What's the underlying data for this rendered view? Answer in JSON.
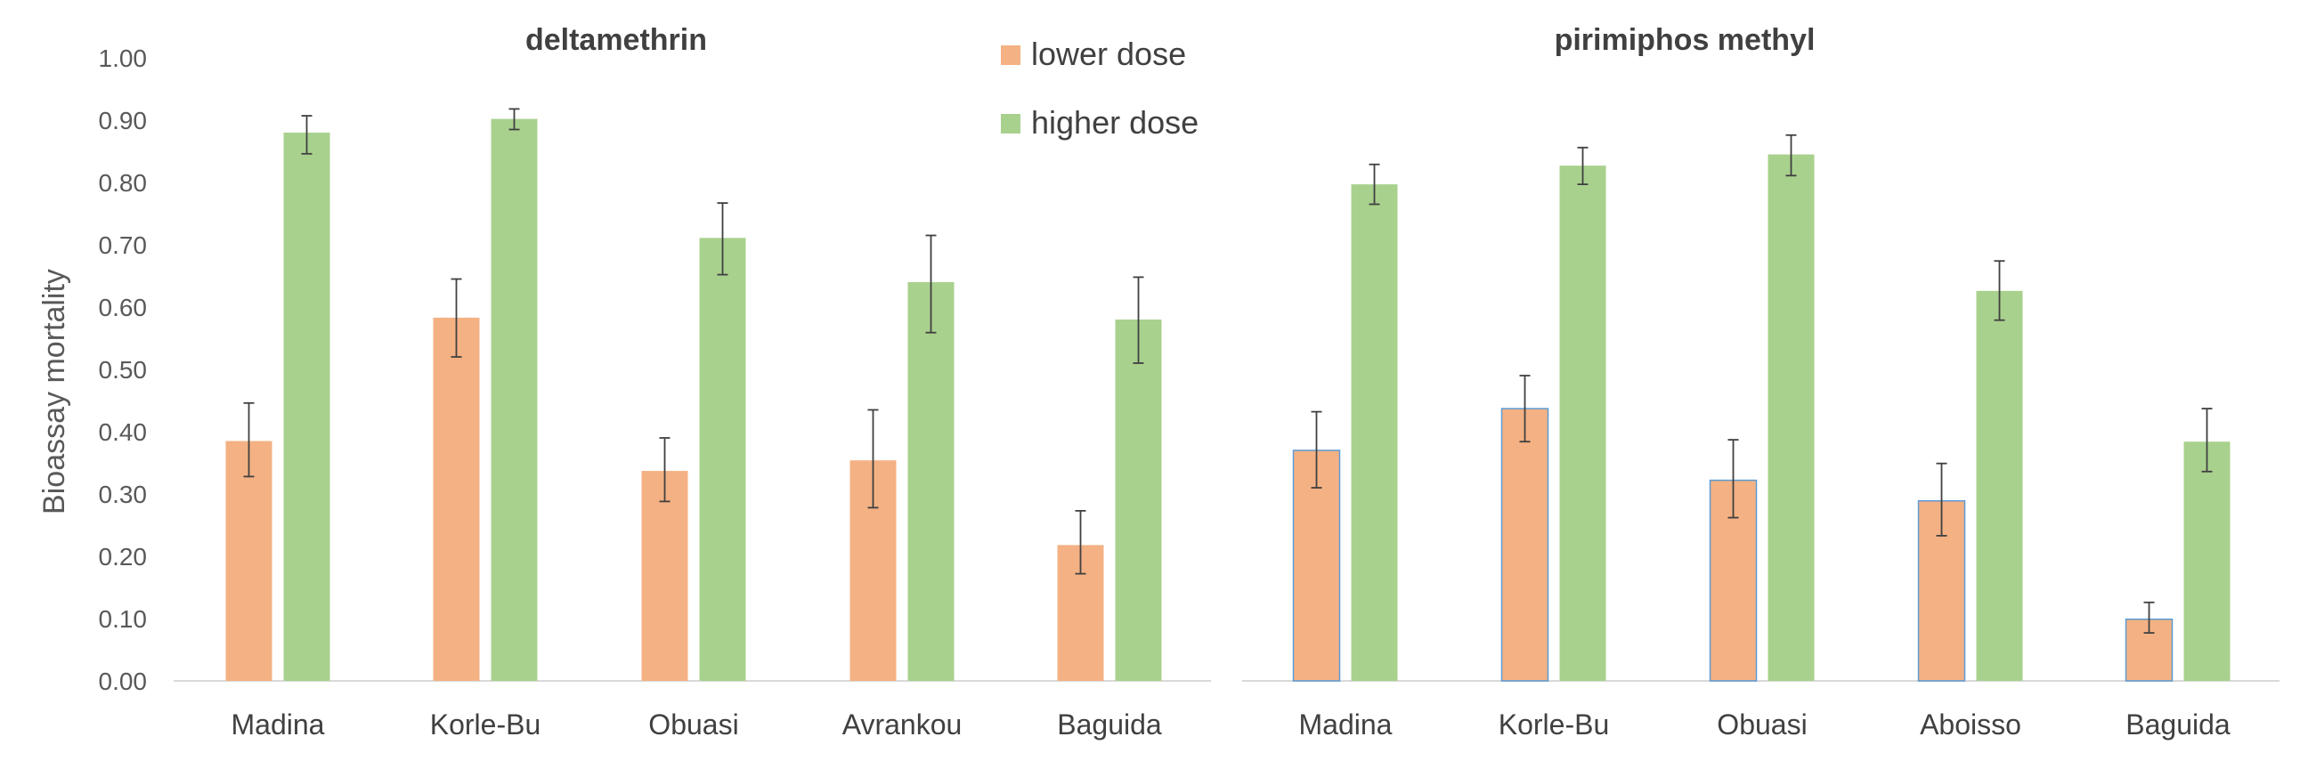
{
  "chart_data": {
    "type": "bar",
    "ylabel": "Bioassay mortality",
    "ylim": [
      0,
      1.0
    ],
    "yticks": [
      "0.00",
      "0.10",
      "0.20",
      "0.30",
      "0.40",
      "0.50",
      "0.60",
      "0.70",
      "0.80",
      "0.90",
      "1.00"
    ],
    "grid": false,
    "legend": {
      "placement": "top-center",
      "entries": [
        {
          "name": "lower dose",
          "color": "#F4B183"
        },
        {
          "name": "higher dose",
          "color": "#A9D18E"
        }
      ]
    },
    "panels": [
      {
        "title": "deltamethrin",
        "categories": [
          "Madina",
          "Korle-Bu",
          "Obuasi",
          "Avrankou",
          "Baguida"
        ],
        "series": [
          {
            "name": "lower dose",
            "values": [
              0.385,
              0.583,
              0.337,
              0.354,
              0.218
            ],
            "err_low": [
              0.328,
              0.52,
              0.288,
              0.278,
              0.172
            ],
            "err_high": [
              0.446,
              0.645,
              0.39,
              0.435,
              0.273
            ]
          },
          {
            "name": "higher dose",
            "values": [
              0.88,
              0.902,
              0.711,
              0.64,
              0.58
            ],
            "err_low": [
              0.846,
              0.885,
              0.652,
              0.559,
              0.51
            ],
            "err_high": [
              0.907,
              0.918,
              0.767,
              0.715,
              0.648
            ]
          }
        ]
      },
      {
        "title": "pirimiphos methyl",
        "categories": [
          "Madina",
          "Korle-Bu",
          "Obuasi",
          "Aboisso",
          "Baguida"
        ],
        "series": [
          {
            "name": "lower dose",
            "values": [
              0.37,
              0.437,
              0.322,
              0.289,
              0.099
            ],
            "err_low": [
              0.31,
              0.384,
              0.262,
              0.233,
              0.077
            ],
            "err_high": [
              0.432,
              0.49,
              0.387,
              0.349,
              0.126
            ]
          },
          {
            "name": "higher dose",
            "values": [
              0.797,
              0.827,
              0.845,
              0.626,
              0.384
            ],
            "err_low": [
              0.765,
              0.797,
              0.811,
              0.579,
              0.336
            ],
            "err_high": [
              0.829,
              0.856,
              0.876,
              0.674,
              0.437
            ]
          }
        ]
      }
    ]
  }
}
